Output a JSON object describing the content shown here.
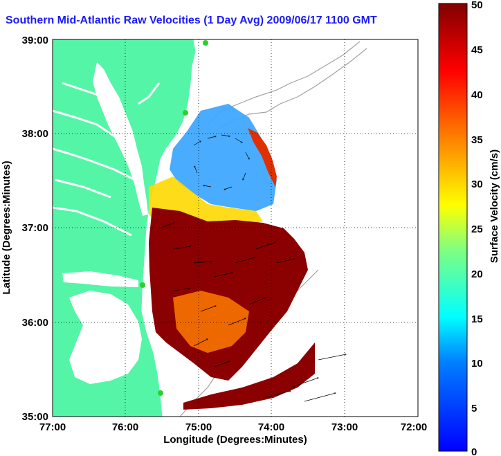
{
  "title": "Southern Mid-Atlantic Raw Velocities (1 Day Avg) 2009/06/17 1100 GMT",
  "map": {
    "x_axis": {
      "label": "Longitude (Degrees:Minutes)",
      "ticks": [
        "77:00",
        "76:00",
        "75:00",
        "74:00",
        "73:00",
        "72:00"
      ]
    },
    "y_axis": {
      "label": "Latitude (Degrees:Minutes)",
      "ticks": [
        "39:00",
        "38:00",
        "37:00",
        "36:00",
        "35:00"
      ]
    },
    "extent": {
      "lon": [
        -77,
        -72
      ],
      "lat": [
        35,
        39
      ]
    },
    "grid": "dotted",
    "land_color": "#55f5a8",
    "water_color": "#ffffff",
    "bathymetry_color": "#a0a0a0"
  },
  "colorbar": {
    "label": "Surface Velocity (cm/s)",
    "ticks": [
      "0",
      "5",
      "10",
      "15",
      "20",
      "25",
      "30",
      "35",
      "40",
      "45",
      "50"
    ],
    "range": [
      0,
      50
    ],
    "colormap": "jet"
  }
}
